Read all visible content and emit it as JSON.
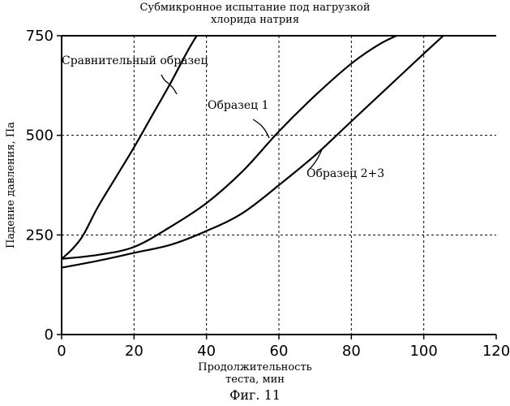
{
  "chart_data": {
    "type": "line",
    "title": [
      "Субмикронное испытание под нагрузкой",
      "хлорида натрия"
    ],
    "xlabel": [
      "Продолжительность",
      "теста, мин"
    ],
    "ylabel": "Падение давления, Па",
    "xlim": [
      0,
      120
    ],
    "ylim": [
      0,
      750
    ],
    "x_ticks": [
      "0",
      "20",
      "40",
      "60",
      "80",
      "100",
      "120"
    ],
    "y_ticks": [
      "0",
      "250",
      "500",
      "750"
    ],
    "grid": true,
    "series": [
      {
        "name": "Сравнительный образец",
        "x": [
          0,
          3,
          6,
          10,
          15,
          20,
          25,
          30,
          35,
          38
        ],
        "y": [
          190,
          215,
          250,
          320,
          395,
          470,
          550,
          630,
          715,
          760
        ]
      },
      {
        "name": "Образец 1",
        "x": [
          0,
          10,
          20,
          30,
          40,
          50,
          60,
          70,
          80,
          88,
          95
        ],
        "y": [
          190,
          200,
          220,
          270,
          330,
          410,
          510,
          600,
          680,
          730,
          760
        ]
      },
      {
        "name": "Образец 2+3",
        "x": [
          0,
          10,
          20,
          30,
          40,
          50,
          60,
          70,
          80,
          90,
          100,
          106
        ],
        "y": [
          168,
          185,
          205,
          225,
          260,
          305,
          375,
          450,
          535,
          620,
          705,
          755
        ]
      }
    ],
    "annotations": [
      "Сравнительный образец",
      "Образец 1",
      "Образец 2+3"
    ]
  },
  "figure_caption": "Фиг. 11"
}
